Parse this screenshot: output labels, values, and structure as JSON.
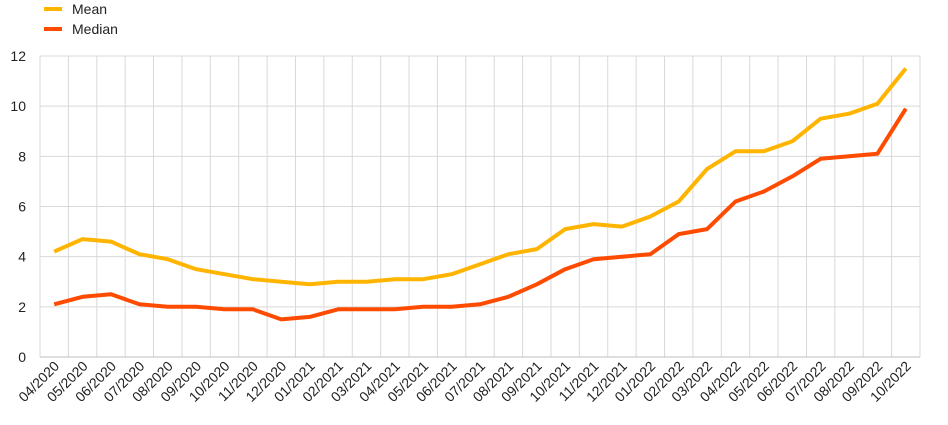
{
  "chart_data": {
    "type": "line",
    "title": "",
    "xlabel": "",
    "ylabel": "",
    "ylim": [
      0,
      12
    ],
    "yticks": [
      0,
      2,
      4,
      6,
      8,
      10,
      12
    ],
    "grid": true,
    "legend_position": "top-left",
    "categories": [
      "04/2020",
      "05/2020",
      "06/2020",
      "07/2020",
      "08/2020",
      "09/2020",
      "10/2020",
      "11/2020",
      "12/2020",
      "01/2021",
      "02/2021",
      "03/2021",
      "04/2021",
      "05/2021",
      "06/2021",
      "07/2021",
      "08/2021",
      "09/2021",
      "10/2021",
      "11/2021",
      "12/2021",
      "01/2022",
      "02/2022",
      "03/2022",
      "04/2022",
      "05/2022",
      "06/2022",
      "07/2022",
      "08/2022",
      "09/2022",
      "10/2022"
    ],
    "series": [
      {
        "name": "Mean",
        "color": "#FFB400",
        "values": [
          4.2,
          4.7,
          4.6,
          4.1,
          3.9,
          3.5,
          3.3,
          3.1,
          3.0,
          2.9,
          3.0,
          3.0,
          3.1,
          3.1,
          3.3,
          3.7,
          4.1,
          4.3,
          5.1,
          5.3,
          5.2,
          5.6,
          6.2,
          7.5,
          8.2,
          8.2,
          8.6,
          9.5,
          9.7,
          10.1,
          11.5
        ]
      },
      {
        "name": "Median",
        "color": "#FF4B00",
        "values": [
          2.1,
          2.4,
          2.5,
          2.1,
          2.0,
          2.0,
          1.9,
          1.9,
          1.5,
          1.6,
          1.9,
          1.9,
          1.9,
          2.0,
          2.0,
          2.1,
          2.4,
          2.9,
          3.5,
          3.9,
          4.0,
          4.1,
          4.9,
          5.1,
          6.2,
          6.6,
          7.2,
          7.9,
          8.0,
          8.1,
          9.9
        ]
      }
    ]
  }
}
